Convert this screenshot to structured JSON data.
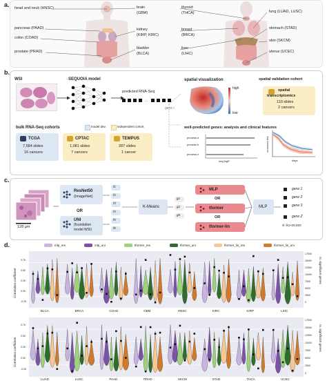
{
  "panel_a": {
    "label": "a.",
    "left_cancers": [
      {
        "name": "head and neck (HNSC)"
      },
      {
        "name": "pancreas (PAAD)"
      },
      {
        "name": "colon (COAD)"
      },
      {
        "name": "prostate (PRAD)"
      },
      {
        "name": "brain"
      },
      {
        "code": "(GBM)"
      },
      {
        "name": "kidney"
      },
      {
        "code": "(KIRP, KIRC)"
      },
      {
        "name": "bladder"
      },
      {
        "code": "(BLCA)"
      }
    ],
    "right_cancers": [
      {
        "name": "thyroid"
      },
      {
        "code": "(THCA)"
      },
      {
        "name": "breast"
      },
      {
        "code": "(BRCA)"
      },
      {
        "name": "liver"
      },
      {
        "code": "(LIHC)"
      },
      {
        "name": "lung (LUAD, LUSC)"
      },
      {
        "name": "stomach (STAD)"
      },
      {
        "name": "skin (SKCM)"
      },
      {
        "name": "uterus (UCEC)"
      }
    ]
  },
  "panel_b": {
    "label": "b.",
    "wsi": "WSI",
    "model": "SEQUOIA model",
    "pred": "predicted RNA-Seq",
    "gene": "gene i",
    "spatial_vis": "spatial visualization",
    "high": "high",
    "low": "low",
    "spatial_cohort": "spatial validation cohort",
    "spatial_tx": "spatial",
    "spatial_tx2": "transcriptomics",
    "spatial_slides": "110 slides",
    "spatial_cancers": "2 cancers",
    "bulk": "bulk RNA-Seq cohorts",
    "model_dev": "model dev.",
    "indep": "independent cohort",
    "cohorts": [
      {
        "name": "TCGA",
        "slides": "7,584 slides",
        "cancers": "16 cancers"
      },
      {
        "name": "CPTAC",
        "slides": "1,081 slides",
        "cancers": "7 cancers"
      },
      {
        "name": "TEMPUS",
        "slides": "287 slides",
        "cancers": "1 cancer"
      }
    ],
    "well_pred": "well-predicted genes: analysis and clinical features",
    "processes": [
      "process a",
      "process b",
      "process z"
    ],
    "neglogp": "neg logP",
    "recurrence": "recurrence free",
    "days": "days"
  },
  "panel_c": {
    "label": "c.",
    "scale": "128 μm",
    "resnet": "ResNet50",
    "resnet_sub": "(ImageNet)",
    "or": "OR",
    "uni": "UNI",
    "uni_sub1": "(foundation",
    "uni_sub2": "model WSI)",
    "features": [
      "f1",
      "f2",
      "f3",
      "f4",
      "f5",
      "f6"
    ],
    "kmeans": "K-Means",
    "clusters": [
      "g1",
      "g2",
      "gK"
    ],
    "mlp": "MLP",
    "tformer": "tformer",
    "tformer_lin": "tformer-lin",
    "mlp_out": "MLP",
    "genes": [
      "gene 1",
      "gene 2",
      "gene 3",
      "gene Z"
    ],
    "dims": "∈ ℝ1×20,820"
  },
  "panel_d": {
    "label": "d.",
    "legend": [
      {
        "name": "mlp_res",
        "color": "#c9b3e0"
      },
      {
        "name": "mlp_uni",
        "color": "#7a52a6"
      },
      {
        "name": "tformer_res",
        "color": "#9fd27c"
      },
      {
        "name": "tformer_uni",
        "color": "#2e6e2a"
      },
      {
        "name": "tformer_lin_res",
        "color": "#f7c794"
      },
      {
        "name": "tformer_lin_uni",
        "color": "#cf7a2e"
      }
    ],
    "ylabel_left": "Correlation coefficient",
    "ylabel_right": "nr. significant genes",
    "top_categories": [
      "BLCA",
      "BRCA",
      "COAD",
      "GBM",
      "HNSC",
      "KIRC",
      "KIRP",
      "LIHC"
    ],
    "bottom_categories": [
      "LUAD",
      "LUSC",
      "PAAD",
      "PRAD",
      "SKCM",
      "STAD",
      "THCA",
      "UCEC"
    ],
    "yticks": [
      "0.75",
      "0.50",
      "0.25",
      "0.00",
      "-0.25"
    ],
    "rticks": [
      "17500",
      "15000",
      "12500",
      "10000",
      "7500",
      "5000",
      "2500",
      "0"
    ]
  }
}
